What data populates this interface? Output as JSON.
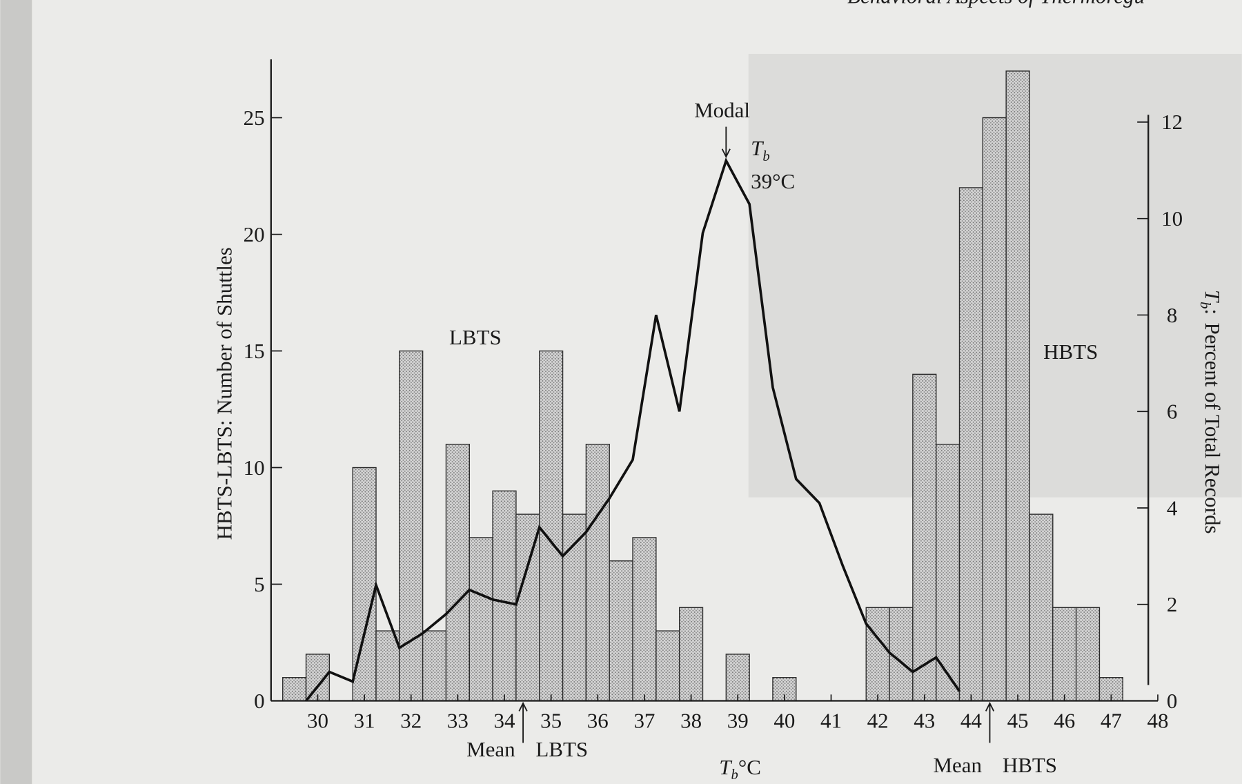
{
  "header": {
    "running_title": "Behavioral Aspects of Thermoregu"
  },
  "chart_data": {
    "type": "histogram",
    "y_label": "HBTS-LBTS: Number of Shuttles",
    "y2_label": "Percent of Total Records",
    "y2_label_symbol": {
      "symbol": "T",
      "subscript": "b",
      "suffix": ":"
    },
    "x_label": {
      "symbol": "T",
      "subscript": "b",
      "unit": "°C"
    },
    "bins": [
      29.25,
      29.75,
      30.25,
      30.75,
      31.25,
      31.75,
      32.25,
      32.75,
      33.25,
      33.75,
      34.25,
      34.75,
      35.25,
      35.75,
      36.25,
      36.75,
      37.25,
      37.75,
      38.25,
      38.75,
      39.25,
      39.75,
      40.25,
      40.75,
      41.25,
      41.75,
      42.25,
      42.75,
      43.25,
      43.75,
      44.25,
      44.75,
      45.25,
      45.75,
      46.25,
      46.75,
      47.25
    ],
    "values": [
      1,
      2,
      0,
      10,
      3,
      15,
      3,
      11,
      7,
      9,
      8,
      15,
      8,
      11,
      6,
      7,
      3,
      4,
      0,
      2,
      0,
      1,
      0,
      0,
      0,
      4,
      4,
      14,
      11,
      22,
      25,
      27,
      8,
      4,
      4,
      1
    ],
    "color": "#bdbdbd",
    "overlay": {
      "type": "line",
      "axis": "y2",
      "color": "#111111",
      "x": [
        29.75,
        30.25,
        30.75,
        31.25,
        31.75,
        32.25,
        32.75,
        33.25,
        33.75,
        34.25,
        34.75,
        35.25,
        35.75,
        36.25,
        36.75,
        37.25,
        37.75,
        38.25,
        38.75,
        39.25,
        39.75,
        40.25,
        40.75,
        41.25,
        41.75,
        42.25,
        42.75,
        43.25,
        43.75
      ],
      "values": [
        0,
        0.6,
        0.4,
        2.4,
        1.1,
        1.4,
        1.8,
        2.3,
        2.1,
        2.0,
        3.6,
        3.0,
        3.5,
        4.2,
        5.0,
        8.0,
        6.0,
        9.7,
        11.2,
        10.3,
        6.5,
        4.6,
        4.1,
        2.8,
        1.6,
        1.0,
        0.6,
        0.9,
        0.2
      ]
    },
    "xlim": [
      29,
      48
    ],
    "xticks": [
      30,
      31,
      32,
      33,
      34,
      35,
      36,
      37,
      38,
      39,
      40,
      41,
      42,
      43,
      44,
      45,
      46,
      47,
      48
    ],
    "ylim": [
      0,
      27.5
    ],
    "yticks": [
      0,
      5,
      10,
      15,
      20,
      25
    ],
    "y2lim": [
      0,
      13.3
    ],
    "y2ticks": [
      0,
      2,
      4,
      6,
      8,
      10,
      12
    ],
    "annotations": {
      "modal": {
        "text": "Modal",
        "value": 38.75,
        "symbol": "T",
        "subscript": "b",
        "temp": "39°C"
      },
      "lbts": "LBTS",
      "hbts": "HBTS",
      "mean_lbts": {
        "label": "Mean",
        "group": "LBTS",
        "value": 34.4
      },
      "mean_hbts": {
        "label": "Mean",
        "group": "HBTS",
        "value": 44.4
      }
    }
  }
}
